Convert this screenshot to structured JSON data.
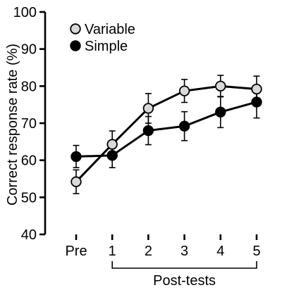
{
  "chart_data": {
    "type": "line",
    "categories": [
      "Pre",
      "1",
      "2",
      "3",
      "4",
      "5"
    ],
    "ylabel": "Correct response rate (%)",
    "xlabel": "Post-tests",
    "xlabel_spans": [
      "1",
      "5"
    ],
    "ylim": [
      40,
      100
    ],
    "yticks": [
      40,
      50,
      60,
      70,
      80,
      90,
      100
    ],
    "grid": false,
    "legend_position": "top-left",
    "series": [
      {
        "name": "Variable",
        "marker_fill": "#d9d9d9",
        "values": [
          54.2,
          64.3,
          74.0,
          78.7,
          80.0,
          79.2
        ],
        "errors": [
          3.2,
          3.6,
          4.0,
          3.1,
          2.9,
          3.5
        ]
      },
      {
        "name": "Simple",
        "marker_fill": "#000000",
        "values": [
          61.0,
          61.3,
          68.0,
          69.2,
          73.0,
          75.7
        ],
        "errors": [
          3.0,
          3.3,
          3.8,
          3.9,
          4.2,
          4.3
        ]
      }
    ]
  }
}
